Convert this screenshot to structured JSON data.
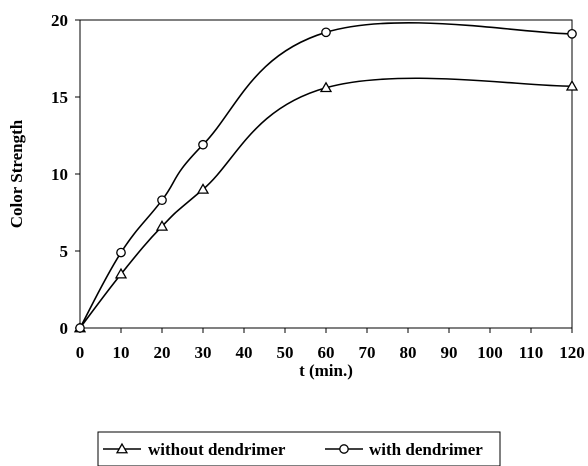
{
  "chart_data": {
    "type": "line",
    "title": "",
    "xlabel": "t (min.)",
    "ylabel": "Color Strength",
    "x_ticks": [
      "0",
      "10",
      "20",
      "30",
      "40",
      "50",
      "60",
      "70",
      "80",
      "90",
      "100",
      "110",
      "120"
    ],
    "y_ticks": [
      "0",
      "5",
      "10",
      "15",
      "20"
    ],
    "ylim": [
      0,
      20
    ],
    "grid": false,
    "legend_position": "bottom",
    "series": [
      {
        "name": "without dendrimer",
        "marker": "triangle",
        "x": [
          "0",
          "10",
          "20",
          "30",
          "60",
          "120"
        ],
        "y": [
          0,
          3.5,
          6.6,
          9.0,
          15.6,
          15.7
        ]
      },
      {
        "name": "with dendrimer",
        "marker": "circle",
        "x": [
          "0",
          "10",
          "20",
          "30",
          "60",
          "120"
        ],
        "y": [
          0,
          4.9,
          8.3,
          11.9,
          19.2,
          19.1
        ]
      }
    ],
    "colors": {
      "line": "#000000",
      "marker_fill": "#ffffff",
      "background": "#ffffff"
    }
  }
}
